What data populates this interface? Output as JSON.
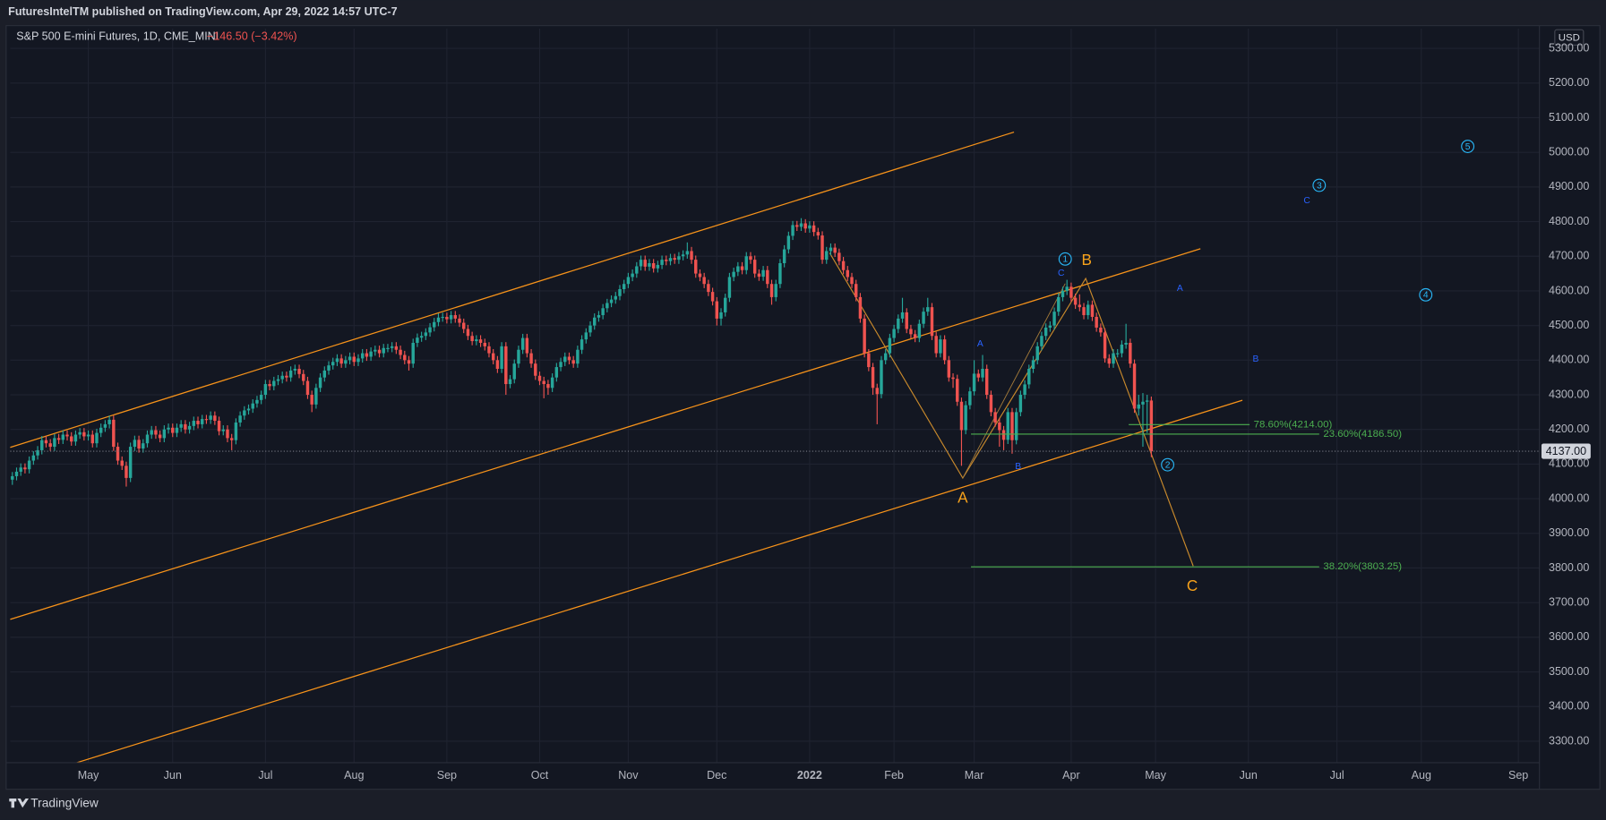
{
  "header": "FuturesIntelTM published on TradingView.com, Apr 29, 2022 14:57 UTC-7",
  "footer": "TradingView",
  "chart_data": {
    "type": "candlestick",
    "title": "S&P 500 E-mini Futures, 1D, CME_MINI",
    "change": "−146.50 (−3.42%)",
    "currency": "USD",
    "up_color": "#26a69a",
    "down_color": "#ef5350",
    "grid": true,
    "last_price": {
      "value": 4137,
      "label": "4137.00"
    },
    "ylim": [
      3238,
      5357
    ],
    "yticks": [
      {
        "value": 3300,
        "label": "3300.00"
      },
      {
        "value": 3400,
        "label": "3400.00"
      },
      {
        "value": 3500,
        "label": "3500.00"
      },
      {
        "value": 3600,
        "label": "3600.00"
      },
      {
        "value": 3700,
        "label": "3700.00"
      },
      {
        "value": 3800,
        "label": "3800.00"
      },
      {
        "value": 3900,
        "label": "3900.00"
      },
      {
        "value": 4000,
        "label": "4000.00"
      },
      {
        "value": 4100,
        "label": "4100.00"
      },
      {
        "value": 4200,
        "label": "4200.00"
      },
      {
        "value": 4300,
        "label": "4300.00"
      },
      {
        "value": 4400,
        "label": "4400.00"
      },
      {
        "value": 4500,
        "label": "4500.00"
      },
      {
        "value": 4600,
        "label": "4600.00"
      },
      {
        "value": 4700,
        "label": "4700.00"
      },
      {
        "value": 4800,
        "label": "4800.00"
      },
      {
        "value": 4900,
        "label": "4900.00"
      },
      {
        "value": 5000,
        "label": "5000.00"
      },
      {
        "value": 5100,
        "label": "5100.00"
      },
      {
        "value": 5200,
        "label": "5200.00"
      },
      {
        "value": 5300,
        "label": "5300.00"
      }
    ],
    "xlim": [
      -0.5,
      362
    ],
    "xticks": [
      {
        "value": 18,
        "label": "May"
      },
      {
        "value": 38,
        "label": "Jun"
      },
      {
        "value": 60,
        "label": "Jul"
      },
      {
        "value": 81,
        "label": "Aug"
      },
      {
        "value": 103,
        "label": "Sep"
      },
      {
        "value": 125,
        "label": "Oct"
      },
      {
        "value": 146,
        "label": "Nov"
      },
      {
        "value": 167,
        "label": "Dec"
      },
      {
        "value": 189,
        "label": "2022"
      },
      {
        "value": 209,
        "label": "Feb"
      },
      {
        "value": 228,
        "label": "Mar"
      },
      {
        "value": 251,
        "label": "Apr"
      },
      {
        "value": 271,
        "label": "May"
      },
      {
        "value": 293,
        "label": "Jun"
      },
      {
        "value": 314,
        "label": "Jul"
      },
      {
        "value": 334,
        "label": "Aug"
      },
      {
        "value": 357,
        "label": "Sep"
      }
    ],
    "fib_levels": [
      {
        "value": 4214,
        "label": "78.60%(4214.00)"
      },
      {
        "value": 4186.5,
        "label": "23.60%(4186.50)"
      },
      {
        "value": 3803.25,
        "label": "38.20%(3803.25)"
      }
    ],
    "wave_labels": {
      "primary": [
        "A",
        "B",
        "C"
      ],
      "impulse": [
        "1",
        "2",
        "3",
        "4",
        "5"
      ],
      "minor": [
        "C",
        "A",
        "B",
        "A",
        "B",
        "C"
      ]
    },
    "open": [
      4055,
      4065,
      4078,
      4090,
      4085,
      4110,
      4125,
      4140,
      4169,
      4160,
      4150,
      4175,
      4170,
      4185,
      4180,
      4165,
      4185,
      4192,
      4180,
      4185,
      4160,
      4190,
      4205,
      4215,
      4228,
      4150,
      4110,
      4095,
      4060,
      4150,
      4170,
      4145,
      4160,
      4185,
      4198,
      4185,
      4175,
      4200,
      4205,
      4190,
      4205,
      4215,
      4200,
      4210,
      4225,
      4215,
      4230,
      4228,
      4240,
      4225,
      4195,
      4200,
      4175,
      4169,
      4220,
      4240,
      4255,
      4260,
      4275,
      4285,
      4300,
      4331,
      4325,
      4340,
      4345,
      4355,
      4350,
      4370,
      4375,
      4360,
      4340,
      4300,
      4272,
      4320,
      4350,
      4370,
      4385,
      4395,
      4405,
      4390,
      4400,
      4410,
      4395,
      4405,
      4420,
      4410,
      4425,
      4430,
      4420,
      4435,
      4435,
      4440,
      4430,
      4415,
      4400,
      4390,
      4450,
      4465,
      4470,
      4480,
      4495,
      4510,
      4523,
      4525,
      4518,
      4530,
      4520,
      4508,
      4490,
      4470,
      4455,
      4460,
      4450,
      4440,
      4420,
      4400,
      4375,
      4440,
      4331,
      4345,
      4390,
      4430,
      4464,
      4420,
      4390,
      4355,
      4340,
      4331,
      4320,
      4350,
      4380,
      4395,
      4410,
      4400,
      4390,
      4430,
      4460,
      4480,
      4500,
      4523,
      4530,
      4550,
      4565,
      4575,
      4585,
      4605,
      4620,
      4640,
      4650,
      4671,
      4690,
      4670,
      4680,
      4665,
      4675,
      4690,
      4686,
      4695,
      4690,
      4700,
      4705,
      4715,
      4690,
      4650,
      4640,
      4620,
      4597,
      4570,
      4520,
      4538,
      4580,
      4640,
      4655,
      4671,
      4660,
      4700,
      4690,
      4650,
      4641,
      4660,
      4620,
      4582,
      4620,
      4680,
      4720,
      4759,
      4790,
      4785,
      4795,
      4780,
      4789,
      4770,
      4760,
      4690,
      4715,
      4725,
      4710,
      4686,
      4660,
      4640,
      4620,
      4582,
      4520,
      4420,
      4380,
      4320,
      4302,
      4400,
      4420,
      4464,
      4490,
      4520,
      4538,
      4490,
      4475,
      4464,
      4505,
      4540,
      4553,
      4470,
      4420,
      4460,
      4400,
      4350,
      4346,
      4280,
      4198,
      4270,
      4310,
      4361,
      4350,
      4375,
      4300,
      4250,
      4220,
      4198,
      4170,
      4250,
      4169,
      4250,
      4300,
      4330,
      4375,
      4400,
      4440,
      4470,
      4494,
      4500,
      4540,
      4582,
      4600,
      4612,
      4580,
      4560,
      4553,
      4530,
      4560,
      4525,
      4494,
      4480,
      4405,
      4390,
      4420,
      4420,
      4445,
      4450,
      4390,
      4260,
      4272,
      4280,
      4283.5
    ],
    "high": [
      4077,
      4090,
      4102,
      4102,
      4122,
      4137,
      4152,
      4181,
      4181,
      4172,
      4187,
      4187,
      4197,
      4197,
      4192,
      4197,
      4204,
      4204,
      4197,
      4197,
      4202,
      4217,
      4227,
      4240,
      4240,
      4162,
      4122,
      4107,
      4162,
      4182,
      4182,
      4172,
      4197,
      4210,
      4210,
      4197,
      4212,
      4217,
      4217,
      4217,
      4227,
      4227,
      4222,
      4237,
      4237,
      4242,
      4242,
      4252,
      4252,
      4237,
      4212,
      4212,
      4187,
      4232,
      4252,
      4267,
      4272,
      4287,
      4297,
      4312,
      4343,
      4343,
      4352,
      4357,
      4367,
      4367,
      4382,
      4387,
      4387,
      4372,
      4352,
      4312,
      4332,
      4362,
      4382,
      4397,
      4407,
      4417,
      4417,
      4412,
      4422,
      4422,
      4417,
      4432,
      4432,
      4437,
      4442,
      4442,
      4447,
      4447,
      4452,
      4452,
      4442,
      4427,
      4412,
      4462,
      4477,
      4482,
      4492,
      4507,
      4522,
      4535,
      4537,
      4537,
      4542,
      4542,
      4532,
      4520,
      4502,
      4482,
      4472,
      4472,
      4462,
      4452,
      4432,
      4412,
      4452,
      4452,
      4357,
      4402,
      4442,
      4476,
      4476,
      4432,
      4402,
      4367,
      4352,
      4343,
      4362,
      4392,
      4407,
      4422,
      4422,
      4412,
      4442,
      4472,
      4492,
      4512,
      4535,
      4542,
      4562,
      4577,
      4587,
      4597,
      4617,
      4632,
      4652,
      4662,
      4683,
      4702,
      4702,
      4692,
      4692,
      4687,
      4702,
      4702,
      4707,
      4707,
      4712,
      4717,
      4740,
      4727,
      4702,
      4662,
      4652,
      4632,
      4609,
      4582,
      4550,
      4592,
      4652,
      4667,
      4683,
      4683,
      4712,
      4712,
      4702,
      4662,
      4672,
      4672,
      4632,
      4632,
      4692,
      4732,
      4771,
      4802,
      4802,
      4810,
      4807,
      4801,
      4801,
      4782,
      4772,
      4727,
      4737,
      4737,
      4722,
      4698,
      4672,
      4652,
      4632,
      4594,
      4532,
      4432,
      4392,
      4332,
      4412,
      4432,
      4476,
      4502,
      4532,
      4580,
      4550,
      4502,
      4487,
      4517,
      4552,
      4580,
      4565,
      4482,
      4472,
      4472,
      4412,
      4362,
      4358,
      4292,
      4282,
      4322,
      4400,
      4373,
      4415,
      4387,
      4312,
      4262,
      4232,
      4210,
      4262,
      4262,
      4262,
      4312,
      4342,
      4387,
      4412,
      4452,
      4482,
      4506,
      4512,
      4552,
      4594,
      4612,
      4632,
      4624,
      4592,
      4590,
      4565,
      4572,
      4572,
      4537,
      4506,
      4492,
      4417,
      4432,
      4432,
      4457,
      4505,
      4462,
      4402,
      4300,
      4305,
      4300,
      4295
    ],
    "low": [
      4040,
      4053,
      4066,
      4073,
      4073,
      4098,
      4113,
      4128,
      4148,
      4138,
      4138,
      4158,
      4158,
      4168,
      4153,
      4153,
      4173,
      4168,
      4168,
      4148,
      4148,
      4178,
      4193,
      4203,
      4138,
      4098,
      4083,
      4035,
      4048,
      4138,
      4133,
      4133,
      4148,
      4173,
      4173,
      4163,
      4163,
      4188,
      4178,
      4178,
      4193,
      4188,
      4188,
      4198,
      4203,
      4203,
      4216,
      4216,
      4213,
      4183,
      4183,
      4163,
      4140,
      4157,
      4208,
      4228,
      4243,
      4248,
      4263,
      4273,
      4288,
      4313,
      4313,
      4328,
      4333,
      4338,
      4338,
      4358,
      4348,
      4328,
      4288,
      4250,
      4260,
      4308,
      4338,
      4358,
      4373,
      4383,
      4378,
      4378,
      4388,
      4383,
      4383,
      4393,
      4398,
      4398,
      4413,
      4408,
      4408,
      4423,
      4423,
      4418,
      4403,
      4388,
      4370,
      4378,
      4438,
      4453,
      4458,
      4468,
      4483,
      4498,
      4511,
      4506,
      4506,
      4508,
      4496,
      4478,
      4458,
      4443,
      4443,
      4438,
      4428,
      4408,
      4388,
      4363,
      4363,
      4300,
      4319,
      4333,
      4378,
      4418,
      4408,
      4378,
      4343,
      4328,
      4290,
      4300,
      4308,
      4338,
      4368,
      4383,
      4388,
      4378,
      4378,
      4418,
      4448,
      4468,
      4488,
      4511,
      4518,
      4538,
      4553,
      4563,
      4573,
      4593,
      4608,
      4628,
      4638,
      4659,
      4658,
      4658,
      4653,
      4653,
      4663,
      4674,
      4674,
      4678,
      4678,
      4688,
      4693,
      4678,
      4638,
      4628,
      4608,
      4585,
      4558,
      4500,
      4500,
      4526,
      4568,
      4628,
      4643,
      4648,
      4648,
      4678,
      4638,
      4629,
      4629,
      4608,
      4560,
      4570,
      4608,
      4668,
      4708,
      4747,
      4773,
      4773,
      4768,
      4768,
      4758,
      4748,
      4678,
      4678,
      4703,
      4698,
      4674,
      4648,
      4628,
      4608,
      4570,
      4508,
      4408,
      4368,
      4300,
      4215,
      4290,
      4388,
      4408,
      4452,
      4478,
      4508,
      4478,
      4463,
      4452,
      4452,
      4493,
      4528,
      4458,
      4408,
      4408,
      4388,
      4338,
      4320,
      4268,
      4095,
      4186,
      4258,
      4298,
      4338,
      4338,
      4288,
      4238,
      4208,
      4150,
      4140,
      4158,
      4130,
      4157,
      4238,
      4288,
      4318,
      4363,
      4388,
      4428,
      4458,
      4482,
      4488,
      4528,
      4570,
      4588,
      4568,
      4548,
      4541,
      4518,
      4518,
      4513,
      4482,
      4468,
      4393,
      4378,
      4378,
      4408,
      4408,
      4433,
      4378,
      4248,
      4240,
      4150,
      4190,
      4120
    ],
    "close": [
      4065,
      4078,
      4090,
      4085,
      4110,
      4125,
      4140,
      4169,
      4160,
      4150,
      4175,
      4170,
      4185,
      4180,
      4165,
      4185,
      4192,
      4180,
      4185,
      4160,
      4190,
      4205,
      4215,
      4228,
      4150,
      4110,
      4095,
      4060,
      4150,
      4170,
      4145,
      4160,
      4185,
      4198,
      4185,
      4175,
      4200,
      4205,
      4190,
      4205,
      4215,
      4200,
      4210,
      4225,
      4215,
      4230,
      4228,
      4240,
      4225,
      4195,
      4200,
      4175,
      4169,
      4220,
      4240,
      4255,
      4260,
      4275,
      4285,
      4300,
      4331,
      4325,
      4340,
      4345,
      4355,
      4350,
      4370,
      4375,
      4360,
      4340,
      4300,
      4272,
      4320,
      4350,
      4370,
      4385,
      4395,
      4405,
      4390,
      4400,
      4410,
      4395,
      4405,
      4420,
      4410,
      4425,
      4430,
      4420,
      4435,
      4435,
      4440,
      4430,
      4415,
      4400,
      4390,
      4450,
      4465,
      4470,
      4480,
      4495,
      4510,
      4523,
      4525,
      4518,
      4530,
      4520,
      4508,
      4490,
      4470,
      4455,
      4460,
      4450,
      4440,
      4420,
      4400,
      4375,
      4440,
      4331,
      4345,
      4390,
      4430,
      4464,
      4420,
      4390,
      4355,
      4340,
      4331,
      4320,
      4350,
      4380,
      4395,
      4410,
      4400,
      4390,
      4430,
      4460,
      4480,
      4500,
      4523,
      4530,
      4550,
      4565,
      4575,
      4585,
      4605,
      4620,
      4640,
      4650,
      4671,
      4690,
      4670,
      4680,
      4665,
      4675,
      4690,
      4686,
      4695,
      4690,
      4700,
      4705,
      4715,
      4690,
      4650,
      4640,
      4620,
      4597,
      4570,
      4520,
      4538,
      4580,
      4640,
      4655,
      4671,
      4660,
      4700,
      4690,
      4650,
      4641,
      4660,
      4620,
      4582,
      4620,
      4680,
      4720,
      4759,
      4790,
      4785,
      4795,
      4780,
      4789,
      4770,
      4760,
      4690,
      4715,
      4725,
      4710,
      4686,
      4660,
      4640,
      4620,
      4582,
      4520,
      4420,
      4380,
      4320,
      4302,
      4400,
      4420,
      4464,
      4490,
      4520,
      4538,
      4490,
      4475,
      4464,
      4505,
      4540,
      4553,
      4470,
      4420,
      4460,
      4400,
      4350,
      4346,
      4280,
      4198,
      4270,
      4310,
      4361,
      4350,
      4375,
      4300,
      4250,
      4220,
      4198,
      4170,
      4250,
      4169,
      4250,
      4300,
      4330,
      4375,
      4400,
      4440,
      4470,
      4494,
      4500,
      4540,
      4582,
      4600,
      4612,
      4580,
      4560,
      4553,
      4530,
      4560,
      4525,
      4494,
      4480,
      4405,
      4390,
      4420,
      4420,
      4445,
      4450,
      4390,
      4260,
      4272,
      4280,
      4283.5,
      4137
    ]
  }
}
